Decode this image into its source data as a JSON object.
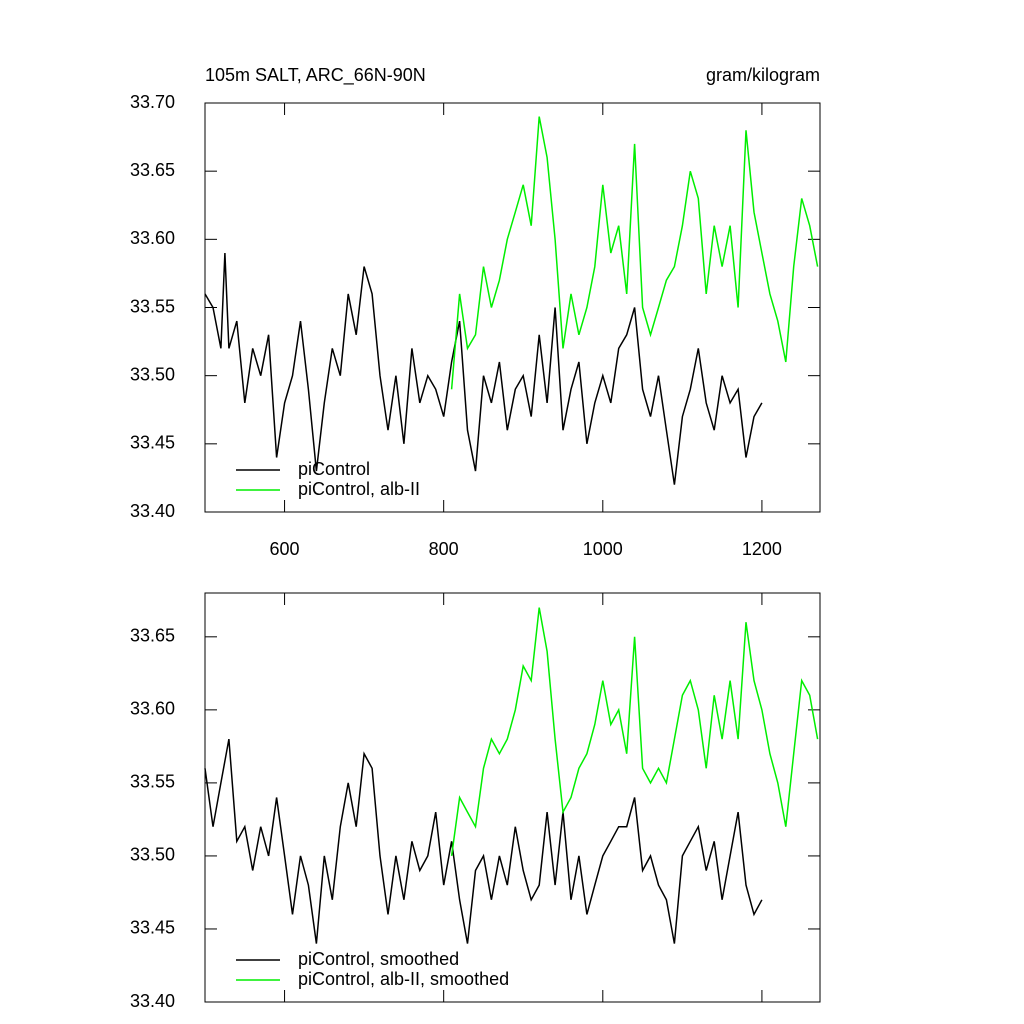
{
  "chart_data": [
    {
      "type": "line",
      "title": "105m SALT, ARC_66N-90N",
      "subtitle": "gram/kilogram",
      "xlim": [
        500,
        1273
      ],
      "xticks": [
        600,
        800,
        1000,
        1200
      ],
      "ylim": [
        33.4,
        33.7
      ],
      "yticks": [
        {
          "value": 33.4,
          "label": "33.40"
        },
        33.45,
        {
          "value": 33.5,
          "label": "33.50"
        },
        33.55,
        {
          "value": 33.6,
          "label": "33.60"
        },
        33.65,
        {
          "value": 33.7,
          "label": "33.70"
        }
      ],
      "legend": "lower left",
      "show_xtick_labels": true,
      "series": [
        {
          "name": "piControl",
          "color": "#000000",
          "x": [
            500,
            510,
            520,
            525,
            530,
            540,
            550,
            560,
            570,
            580,
            590,
            600,
            610,
            620,
            630,
            640,
            650,
            660,
            670,
            680,
            690,
            700,
            710,
            720,
            730,
            740,
            750,
            760,
            770,
            780,
            790,
            800,
            810,
            820,
            830,
            840,
            850,
            860,
            870,
            880,
            890,
            900,
            910,
            920,
            930,
            940,
            950,
            960,
            970,
            980,
            990,
            1000,
            1010,
            1020,
            1030,
            1040,
            1050,
            1060,
            1070,
            1080,
            1090,
            1100,
            1110,
            1120,
            1130,
            1140,
            1150,
            1160,
            1170,
            1180,
            1190,
            1200
          ],
          "values": [
            33.56,
            33.55,
            33.52,
            33.59,
            33.52,
            33.54,
            33.48,
            33.52,
            33.5,
            33.53,
            33.44,
            33.48,
            33.5,
            33.54,
            33.49,
            33.43,
            33.48,
            33.52,
            33.5,
            33.56,
            33.53,
            33.58,
            33.56,
            33.5,
            33.46,
            33.5,
            33.45,
            33.52,
            33.48,
            33.5,
            33.49,
            33.47,
            33.51,
            33.54,
            33.46,
            33.43,
            33.5,
            33.48,
            33.51,
            33.46,
            33.49,
            33.5,
            33.47,
            33.53,
            33.48,
            33.55,
            33.46,
            33.49,
            33.51,
            33.45,
            33.48,
            33.5,
            33.48,
            33.52,
            33.53,
            33.55,
            33.49,
            33.47,
            33.5,
            33.46,
            33.42,
            33.47,
            33.49,
            33.52,
            33.48,
            33.46,
            33.5,
            33.48,
            33.49,
            33.44,
            33.47,
            33.48
          ]
        },
        {
          "name": "piControl, alb-II",
          "color": "#00ee00",
          "x": [
            810,
            820,
            830,
            840,
            850,
            860,
            870,
            880,
            890,
            900,
            910,
            920,
            930,
            940,
            950,
            960,
            970,
            980,
            990,
            1000,
            1010,
            1020,
            1030,
            1040,
            1050,
            1060,
            1070,
            1080,
            1090,
            1100,
            1110,
            1120,
            1130,
            1140,
            1150,
            1160,
            1170,
            1180,
            1190,
            1200,
            1210,
            1220,
            1230,
            1240,
            1250,
            1260,
            1270
          ],
          "values": [
            33.49,
            33.56,
            33.52,
            33.53,
            33.58,
            33.55,
            33.57,
            33.6,
            33.62,
            33.64,
            33.61,
            33.69,
            33.66,
            33.6,
            33.52,
            33.56,
            33.53,
            33.55,
            33.58,
            33.64,
            33.59,
            33.61,
            33.56,
            33.67,
            33.55,
            33.53,
            33.55,
            33.57,
            33.58,
            33.61,
            33.65,
            33.63,
            33.56,
            33.61,
            33.58,
            33.61,
            33.55,
            33.68,
            33.62,
            33.59,
            33.56,
            33.54,
            33.51,
            33.58,
            33.63,
            33.61,
            33.58
          ]
        }
      ]
    },
    {
      "type": "line",
      "xlim": [
        500,
        1273
      ],
      "xticks": [
        600,
        800,
        1000,
        1200
      ],
      "ylim": [
        33.4,
        33.68
      ],
      "yticks": [
        {
          "value": 33.4,
          "label": "33.40"
        },
        33.45,
        {
          "value": 33.5,
          "label": "33.50"
        },
        33.55,
        {
          "value": 33.6,
          "label": "33.60"
        },
        33.65
      ],
      "legend": "lower left",
      "show_xtick_labels": false,
      "series": [
        {
          "name": "piControl, smoothed",
          "color": "#000000",
          "x": [
            500,
            510,
            520,
            530,
            540,
            550,
            560,
            570,
            580,
            590,
            600,
            610,
            620,
            630,
            640,
            650,
            660,
            670,
            680,
            690,
            700,
            710,
            720,
            730,
            740,
            750,
            760,
            770,
            780,
            790,
            800,
            810,
            820,
            830,
            840,
            850,
            860,
            870,
            880,
            890,
            900,
            910,
            920,
            930,
            940,
            950,
            960,
            970,
            980,
            990,
            1000,
            1010,
            1020,
            1030,
            1040,
            1050,
            1060,
            1070,
            1080,
            1090,
            1100,
            1110,
            1120,
            1130,
            1140,
            1150,
            1160,
            1170,
            1180,
            1190,
            1200
          ],
          "values": [
            33.56,
            33.52,
            33.55,
            33.58,
            33.51,
            33.52,
            33.49,
            33.52,
            33.5,
            33.54,
            33.5,
            33.46,
            33.5,
            33.48,
            33.44,
            33.5,
            33.47,
            33.52,
            33.55,
            33.52,
            33.57,
            33.56,
            33.5,
            33.46,
            33.5,
            33.47,
            33.51,
            33.49,
            33.5,
            33.53,
            33.48,
            33.51,
            33.47,
            33.44,
            33.49,
            33.5,
            33.47,
            33.5,
            33.48,
            33.52,
            33.49,
            33.47,
            33.48,
            33.53,
            33.48,
            33.53,
            33.47,
            33.5,
            33.46,
            33.48,
            33.5,
            33.51,
            33.52,
            33.52,
            33.54,
            33.49,
            33.5,
            33.48,
            33.47,
            33.44,
            33.5,
            33.51,
            33.52,
            33.49,
            33.51,
            33.47,
            33.5,
            33.53,
            33.48,
            33.46,
            33.47
          ]
        },
        {
          "name": "piControl, alb-II, smoothed",
          "color": "#00ee00",
          "x": [
            810,
            820,
            830,
            840,
            850,
            860,
            870,
            880,
            890,
            900,
            910,
            920,
            930,
            940,
            950,
            960,
            970,
            980,
            990,
            1000,
            1010,
            1020,
            1030,
            1040,
            1050,
            1060,
            1070,
            1080,
            1090,
            1100,
            1110,
            1120,
            1130,
            1140,
            1150,
            1160,
            1170,
            1180,
            1190,
            1200,
            1210,
            1220,
            1230,
            1240,
            1250,
            1260,
            1270
          ],
          "values": [
            33.5,
            33.54,
            33.53,
            33.52,
            33.56,
            33.58,
            33.57,
            33.58,
            33.6,
            33.63,
            33.62,
            33.67,
            33.64,
            33.58,
            33.53,
            33.54,
            33.56,
            33.57,
            33.59,
            33.62,
            33.59,
            33.6,
            33.57,
            33.65,
            33.56,
            33.55,
            33.56,
            33.55,
            33.58,
            33.61,
            33.62,
            33.6,
            33.56,
            33.61,
            33.58,
            33.62,
            33.58,
            33.66,
            33.62,
            33.6,
            33.57,
            33.55,
            33.52,
            33.57,
            33.62,
            33.61,
            33.58
          ]
        }
      ]
    }
  ]
}
